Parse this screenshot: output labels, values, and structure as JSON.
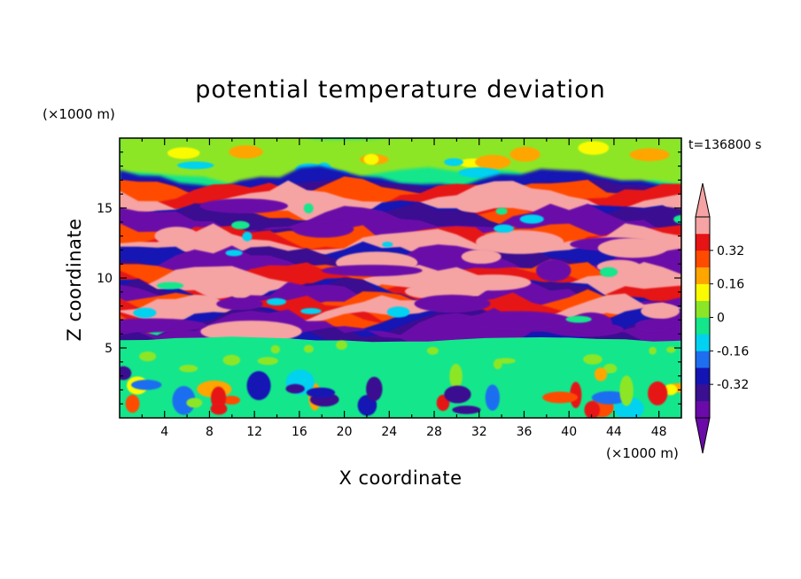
{
  "chart_data": {
    "type": "heatmap",
    "title": "potential temperature deviation",
    "xlabel": "X coordinate",
    "ylabel": "Z coordinate",
    "x_units": "(×1000 m)",
    "y_units": "(×1000 m)",
    "time_label": "t=136800 s",
    "xlim": [
      0,
      50
    ],
    "ylim": [
      0,
      20
    ],
    "x_ticks": [
      4,
      8,
      12,
      16,
      20,
      24,
      28,
      32,
      36,
      40,
      44,
      48
    ],
    "y_ticks": [
      5,
      10,
      15
    ],
    "colorbar": {
      "levels": [
        -0.48,
        -0.4,
        -0.32,
        -0.24,
        -0.16,
        -0.08,
        0,
        0.08,
        0.16,
        0.24,
        0.32,
        0.4,
        0.48
      ],
      "labels": [
        "-0.32",
        "-0.16",
        "0",
        "0.16",
        "0.32"
      ],
      "label_values": [
        -0.32,
        -0.16,
        0,
        0.16,
        0.32
      ],
      "colors": [
        "#6a0aa8",
        "#3a0f90",
        "#1414b4",
        "#1e6ef0",
        "#00d2f0",
        "#14e68c",
        "#8ce628",
        "#fafa00",
        "#ffa500",
        "#ff4b00",
        "#e61414",
        "#f5a3a3"
      ],
      "under_color": "#6a0aa8",
      "over_color": "#f5a3a3",
      "extend": "both"
    },
    "background_color": "#14e68c",
    "bands": [
      {
        "z": [
          17.5,
          20
        ],
        "value": 0.02
      },
      {
        "z": [
          14,
          17.5
        ],
        "value": "alternating layers, roughly -0.4 to +0.4"
      },
      {
        "z": [
          5.5,
          14
        ],
        "value": "large-amplitude alternating layers, about -0.48 to +0.48"
      },
      {
        "z": [
          3,
          5.5
        ],
        "value": 0.0
      },
      {
        "z": [
          0,
          3
        ],
        "value": "convective cells, about -0.3 to +0.3"
      }
    ]
  }
}
